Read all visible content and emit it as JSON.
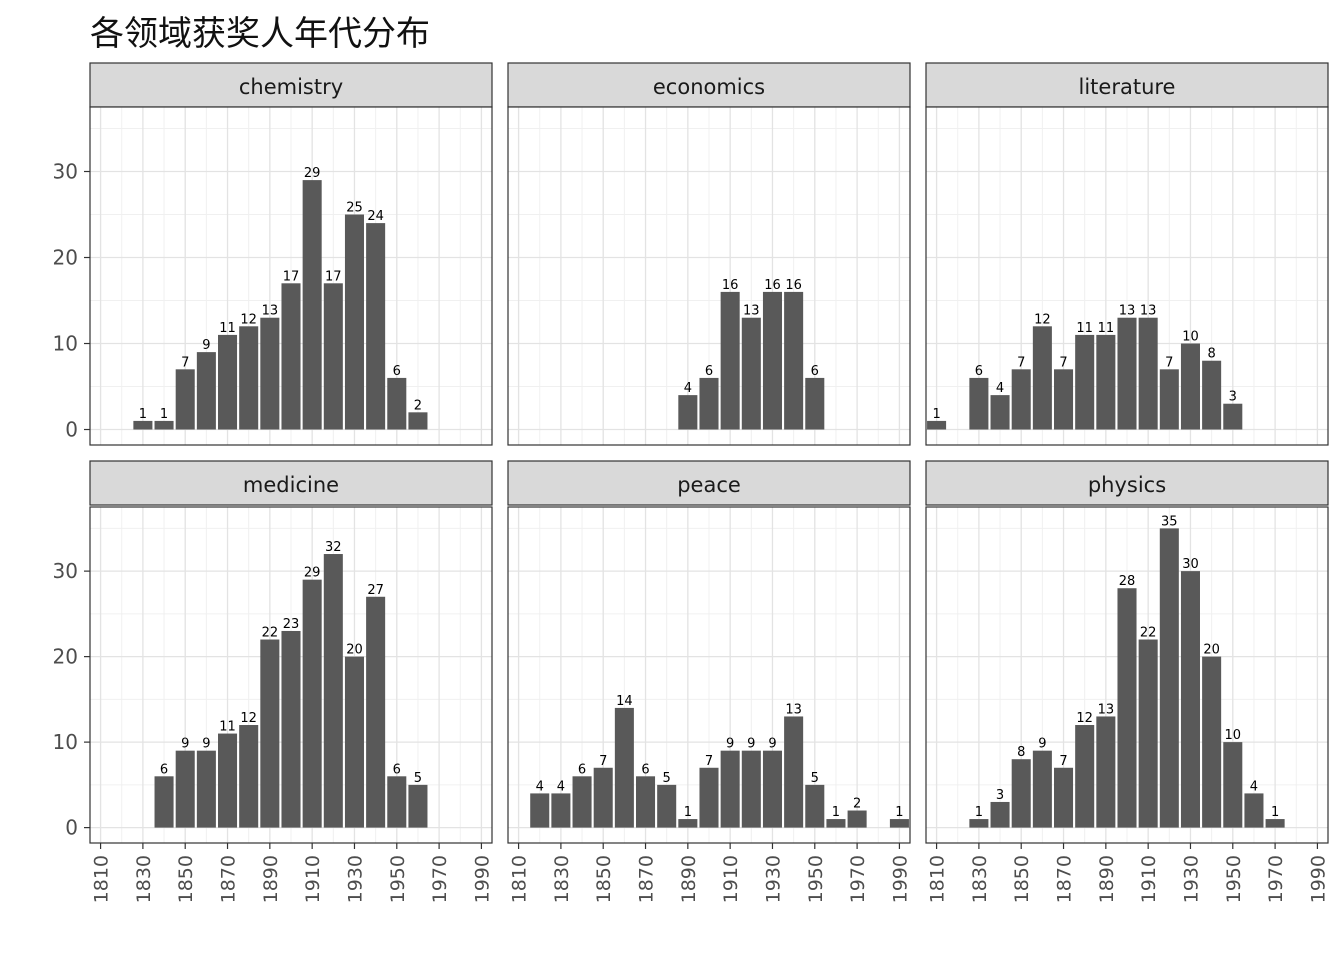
{
  "title": "各领域获奖人年代分布",
  "chart_data": {
    "type": "bar",
    "facet_wrap": true,
    "x_ticks": [
      "1810",
      "1830",
      "1850",
      "1870",
      "1890",
      "1910",
      "1930",
      "1950",
      "1970",
      "1990"
    ],
    "x_tick_rotation": "vertical",
    "xlim": [
      1805,
      1995
    ],
    "y_ticks": [
      0,
      10,
      20,
      30
    ],
    "ylim": [
      0,
      35
    ],
    "grid": true,
    "theme": "bw",
    "bar_color": "#595959",
    "strip_color": "#d9d9d9",
    "panels": [
      {
        "name": "chemistry",
        "bars": [
          [
            1830,
            1
          ],
          [
            1840,
            1
          ],
          [
            1850,
            7
          ],
          [
            1860,
            9
          ],
          [
            1870,
            11
          ],
          [
            1880,
            12
          ],
          [
            1890,
            13
          ],
          [
            1900,
            17
          ],
          [
            1910,
            29
          ],
          [
            1920,
            17
          ],
          [
            1930,
            25
          ],
          [
            1940,
            24
          ],
          [
            1950,
            6
          ],
          [
            1960,
            2
          ]
        ]
      },
      {
        "name": "economics",
        "bars": [
          [
            1890,
            4
          ],
          [
            1900,
            6
          ],
          [
            1910,
            16
          ],
          [
            1920,
            13
          ],
          [
            1930,
            16
          ],
          [
            1940,
            16
          ],
          [
            1950,
            6
          ]
        ]
      },
      {
        "name": "literature",
        "bars": [
          [
            1810,
            1
          ],
          [
            1830,
            6
          ],
          [
            1840,
            4
          ],
          [
            1850,
            7
          ],
          [
            1860,
            12
          ],
          [
            1870,
            7
          ],
          [
            1880,
            11
          ],
          [
            1890,
            11
          ],
          [
            1900,
            13
          ],
          [
            1910,
            13
          ],
          [
            1920,
            7
          ],
          [
            1930,
            10
          ],
          [
            1940,
            8
          ],
          [
            1950,
            3
          ]
        ]
      },
      {
        "name": "medicine",
        "bars": [
          [
            1840,
            6
          ],
          [
            1850,
            9
          ],
          [
            1860,
            9
          ],
          [
            1870,
            11
          ],
          [
            1880,
            12
          ],
          [
            1890,
            22
          ],
          [
            1900,
            23
          ],
          [
            1910,
            29
          ],
          [
            1920,
            32
          ],
          [
            1930,
            20
          ],
          [
            1940,
            27
          ],
          [
            1950,
            6
          ],
          [
            1960,
            5
          ]
        ]
      },
      {
        "name": "peace",
        "bars": [
          [
            1820,
            4
          ],
          [
            1830,
            4
          ],
          [
            1840,
            6
          ],
          [
            1850,
            7
          ],
          [
            1860,
            14
          ],
          [
            1870,
            6
          ],
          [
            1880,
            5
          ],
          [
            1890,
            1
          ],
          [
            1900,
            7
          ],
          [
            1910,
            9
          ],
          [
            1920,
            9
          ],
          [
            1930,
            9
          ],
          [
            1940,
            13
          ],
          [
            1950,
            5
          ],
          [
            1960,
            1
          ],
          [
            1970,
            2
          ],
          [
            1990,
            1
          ]
        ]
      },
      {
        "name": "physics",
        "bars": [
          [
            1830,
            1
          ],
          [
            1840,
            3
          ],
          [
            1850,
            8
          ],
          [
            1860,
            9
          ],
          [
            1870,
            7
          ],
          [
            1880,
            12
          ],
          [
            1890,
            13
          ],
          [
            1900,
            28
          ],
          [
            1910,
            22
          ],
          [
            1920,
            35
          ],
          [
            1930,
            30
          ],
          [
            1940,
            20
          ],
          [
            1950,
            10
          ],
          [
            1960,
            4
          ],
          [
            1970,
            1
          ]
        ]
      }
    ]
  }
}
